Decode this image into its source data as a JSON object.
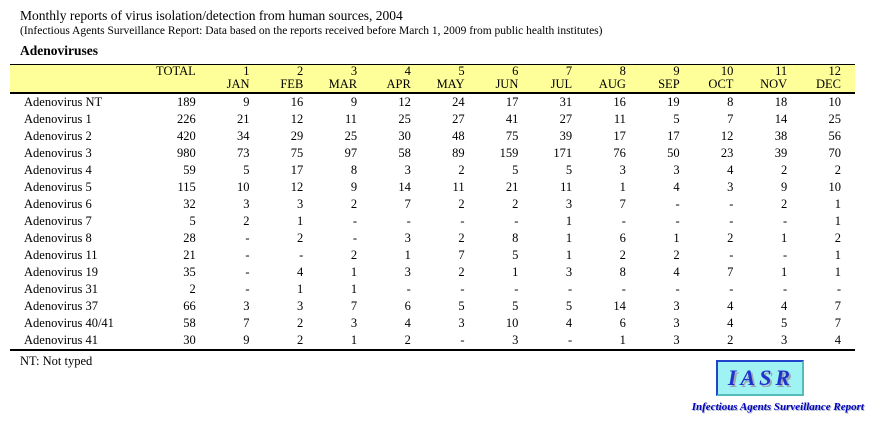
{
  "page": {
    "title": "Monthly reports of virus isolation/detection from human sources, 2004",
    "subtitle": "(Infectious Agents Surveillance Report: Data based on the reports received before March 1, 2009 from public health institutes)",
    "section_heading": "Adenoviruses",
    "footnote": "NT: Not typed"
  },
  "colors": {
    "table_header_bg": "#FFFF99",
    "logo_box_bg": "#9FF3F3",
    "logo_text": "#2233CC",
    "logo_caption": "#0000BB"
  },
  "table": {
    "columns_row1": [
      "",
      "TOTAL",
      "1",
      "2",
      "3",
      "4",
      "5",
      "6",
      "7",
      "8",
      "9",
      "10",
      "11",
      "12"
    ],
    "columns_row2": [
      "",
      "",
      "JAN",
      "FEB",
      "MAR",
      "APR",
      "MAY",
      "JUN",
      "JUL",
      "AUG",
      "SEP",
      "OCT",
      "NOV",
      "DEC"
    ],
    "rows": [
      {
        "name": "Adenovirus NT",
        "total": "189",
        "monthly": [
          "9",
          "16",
          "9",
          "12",
          "24",
          "17",
          "31",
          "16",
          "19",
          "8",
          "18",
          "10"
        ]
      },
      {
        "name": "Adenovirus 1",
        "total": "226",
        "monthly": [
          "21",
          "12",
          "11",
          "25",
          "27",
          "41",
          "27",
          "11",
          "5",
          "7",
          "14",
          "25"
        ]
      },
      {
        "name": "Adenovirus 2",
        "total": "420",
        "monthly": [
          "34",
          "29",
          "25",
          "30",
          "48",
          "75",
          "39",
          "17",
          "17",
          "12",
          "38",
          "56"
        ]
      },
      {
        "name": "Adenovirus 3",
        "total": "980",
        "monthly": [
          "73",
          "75",
          "97",
          "58",
          "89",
          "159",
          "171",
          "76",
          "50",
          "23",
          "39",
          "70"
        ]
      },
      {
        "name": "Adenovirus 4",
        "total": "59",
        "monthly": [
          "5",
          "17",
          "8",
          "3",
          "2",
          "5",
          "5",
          "3",
          "3",
          "4",
          "2",
          "2"
        ]
      },
      {
        "name": "Adenovirus 5",
        "total": "115",
        "monthly": [
          "10",
          "12",
          "9",
          "14",
          "11",
          "21",
          "11",
          "1",
          "4",
          "3",
          "9",
          "10"
        ]
      },
      {
        "name": "Adenovirus 6",
        "total": "32",
        "monthly": [
          "3",
          "3",
          "2",
          "7",
          "2",
          "2",
          "3",
          "7",
          "-",
          "-",
          "2",
          "1"
        ]
      },
      {
        "name": "Adenovirus 7",
        "total": "5",
        "monthly": [
          "2",
          "1",
          "-",
          "-",
          "-",
          "-",
          "1",
          "-",
          "-",
          "-",
          "-",
          "1"
        ]
      },
      {
        "name": "Adenovirus 8",
        "total": "28",
        "monthly": [
          "-",
          "2",
          "-",
          "3",
          "2",
          "8",
          "1",
          "6",
          "1",
          "2",
          "1",
          "2"
        ]
      },
      {
        "name": "Adenovirus 11",
        "total": "21",
        "monthly": [
          "-",
          "-",
          "2",
          "1",
          "7",
          "5",
          "1",
          "2",
          "2",
          "-",
          "-",
          "1"
        ]
      },
      {
        "name": "Adenovirus 19",
        "total": "35",
        "monthly": [
          "-",
          "4",
          "1",
          "3",
          "2",
          "1",
          "3",
          "8",
          "4",
          "7",
          "1",
          "1"
        ]
      },
      {
        "name": "Adenovirus 31",
        "total": "2",
        "monthly": [
          "-",
          "1",
          "1",
          "-",
          "-",
          "-",
          "-",
          "-",
          "-",
          "-",
          "-",
          "-"
        ]
      },
      {
        "name": "Adenovirus 37",
        "total": "66",
        "monthly": [
          "3",
          "3",
          "7",
          "6",
          "5",
          "5",
          "5",
          "14",
          "3",
          "4",
          "4",
          "7"
        ]
      },
      {
        "name": "Adenovirus 40/41",
        "total": "58",
        "monthly": [
          "7",
          "2",
          "3",
          "4",
          "3",
          "10",
          "4",
          "6",
          "3",
          "4",
          "5",
          "7"
        ]
      },
      {
        "name": "Adenovirus 41",
        "total": "30",
        "monthly": [
          "9",
          "2",
          "1",
          "2",
          "-",
          "3",
          "-",
          "1",
          "3",
          "2",
          "3",
          "4"
        ]
      }
    ]
  },
  "logo": {
    "acronym": "IASR",
    "caption": "Infectious Agents Surveillance Report"
  }
}
